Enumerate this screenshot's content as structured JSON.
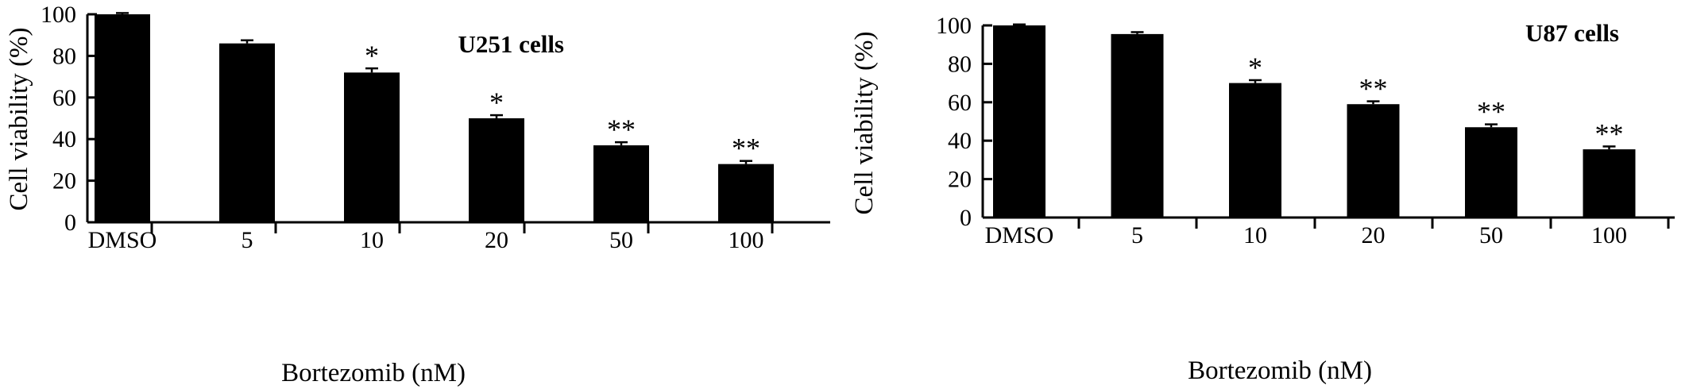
{
  "chart_data": [
    {
      "type": "bar",
      "title": "U251 cells",
      "xlabel": "Bortezomib (nM)",
      "ylabel": "Cell viability (%)",
      "ylim": [
        0,
        100
      ],
      "yticks": [
        0,
        20,
        40,
        60,
        80,
        100
      ],
      "categories": [
        "DMSO",
        "5",
        "10",
        "20",
        "50",
        "100"
      ],
      "values": [
        100,
        86,
        72,
        50,
        37,
        28
      ],
      "errors": [
        0.6,
        1.5,
        2,
        1.5,
        1.5,
        1.5
      ],
      "significance": [
        "",
        "",
        "*",
        "*",
        "**",
        "**"
      ],
      "bar_color": "#000000",
      "grid": false
    },
    {
      "type": "bar",
      "title": "U87 cells",
      "xlabel": "Bortezomib (nM)",
      "ylabel": "Cell viability (%)",
      "ylim": [
        0,
        100
      ],
      "yticks": [
        0,
        20,
        40,
        60,
        80,
        100
      ],
      "categories": [
        "DMSO",
        "5",
        "10",
        "20",
        "50",
        "100"
      ],
      "values": [
        100,
        95.5,
        70,
        59,
        47,
        35.5
      ],
      "errors": [
        0.5,
        1,
        1.5,
        1.5,
        1.5,
        1.5
      ],
      "significance": [
        "",
        "",
        "*",
        "**",
        "**",
        "**"
      ],
      "bar_color": "#000000",
      "grid": false
    }
  ]
}
